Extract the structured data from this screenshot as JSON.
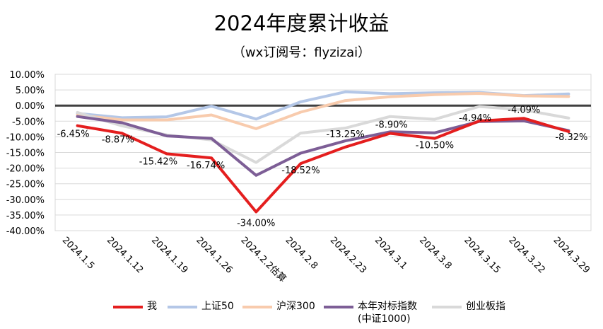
{
  "chart_data": {
    "type": "line",
    "title": "2024年度累计收益",
    "subtitle": "（wx订阅号：flyzizai）",
    "xlabel": "",
    "ylabel": "",
    "ylim": [
      -40,
      10
    ],
    "y_ticks": [
      10,
      5,
      0,
      -5,
      -10,
      -15,
      -20,
      -25,
      -30,
      -35,
      -40
    ],
    "y_tick_labels": [
      "10.00%",
      "5.00%",
      "0.00%",
      "-5.00%",
      "-10.00%",
      "-15.00%",
      "-20.00%",
      "-25.00%",
      "-30.00%",
      "-35.00%",
      "-40.00%"
    ],
    "categories": [
      "2024.1.5",
      "2024.1.12",
      "2024.1.19",
      "2024.1.26",
      "2024.2.2估算",
      "2024.2.8",
      "2024.2.23",
      "2024.3.1",
      "2024.3.8",
      "2024.3.15",
      "2024.3.22",
      "2024.3.29"
    ],
    "grid": true,
    "legend_position": "bottom",
    "series": [
      {
        "name": "上证50",
        "color": "#B4C7E7",
        "values": [
          -2.5,
          -3.9,
          -3.6,
          -0.2,
          -4.3,
          1.2,
          4.4,
          3.8,
          4.1,
          4.2,
          3.2,
          3.7
        ]
      },
      {
        "name": "沪深300",
        "color": "#F8CBAD",
        "values": [
          -3.0,
          -4.6,
          -4.6,
          -3.0,
          -7.4,
          -2.1,
          1.6,
          2.8,
          3.5,
          3.9,
          3.1,
          2.9
        ]
      },
      {
        "name": "创业板指",
        "color": "#D9D9D9",
        "values": [
          -2.2,
          -6.5,
          -9.4,
          -11.0,
          -18.2,
          -8.8,
          -7.2,
          -3.5,
          -4.4,
          -0.3,
          -1.4,
          -4.0
        ]
      },
      {
        "name": "本年对标指数(中证1000)",
        "color": "#7D5E96",
        "values": [
          -3.5,
          -5.5,
          -9.7,
          -10.5,
          -22.3,
          -15.2,
          -11.3,
          -8.4,
          -8.7,
          -5.1,
          -4.9,
          -8.0
        ]
      },
      {
        "name": "我",
        "color": "#E41E1E",
        "values": [
          -6.45,
          -8.87,
          -15.42,
          -16.74,
          -34.0,
          -18.52,
          -13.25,
          -8.9,
          -10.5,
          -4.94,
          -4.09,
          -8.32
        ]
      }
    ],
    "data_labels": {
      "series": "我",
      "labels": [
        "-6.45%",
        "-8.87%",
        "-15.42%",
        "-16.74%",
        "-34.00%",
        "-18.52%",
        "-13.25%",
        "-8.90%",
        "-10.50%",
        "-4.94%",
        "-4.09%",
        "-8.32%"
      ]
    },
    "legend": [
      {
        "label": "我",
        "color": "#E41E1E"
      },
      {
        "label": "上证50",
        "color": "#B4C7E7"
      },
      {
        "label": "沪深300",
        "color": "#F8CBAD"
      },
      {
        "label": "本年对标指数\n(中证1000)",
        "color": "#7D5E96"
      },
      {
        "label": "创业板指",
        "color": "#D9D9D9"
      }
    ]
  }
}
